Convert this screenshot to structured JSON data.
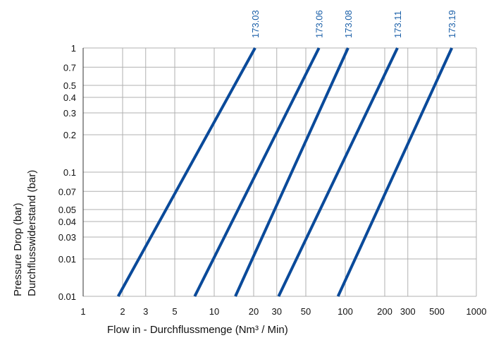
{
  "chart_data": {
    "type": "line",
    "title": "",
    "xlabel": "Flow in - Durchflussmenge (Nm³ / Min)",
    "ylabel_lines": [
      "Pressure Drop (bar)",
      "Durchflusswiderstand (bar)"
    ],
    "x_scale": "log",
    "y_scale": "log",
    "xlim": [
      1,
      1000
    ],
    "ylim": [
      0.01,
      1
    ],
    "grid": true,
    "x_ticks": [
      "1",
      "2",
      "3",
      "5",
      "10",
      "20",
      "30",
      "50",
      "100",
      "200",
      "300",
      "500",
      "1000"
    ],
    "y_tick_labels": [
      "1",
      "0.7",
      "0.5",
      "0.4",
      "0.3",
      "0.2",
      "0.1",
      "0.07",
      "0.05",
      "0.04",
      "0.03",
      "0.01",
      "0.01"
    ],
    "series": [
      {
        "name": "173.03",
        "x": [
          1.85,
          20.5
        ],
        "y": [
          0.01,
          1
        ]
      },
      {
        "name": "173.06",
        "x": [
          7.1,
          63
        ],
        "y": [
          0.01,
          1
        ]
      },
      {
        "name": "173.08",
        "x": [
          14.5,
          105
        ],
        "y": [
          0.01,
          1
        ]
      },
      {
        "name": "173.11",
        "x": [
          31,
          250
        ],
        "y": [
          0.01,
          1
        ]
      },
      {
        "name": "173.19",
        "x": [
          88,
          650
        ],
        "y": [
          0.01,
          1
        ]
      }
    ],
    "colors": {
      "line": "#0a4a9a",
      "label": "#1a5fa8",
      "grid": "#b0b0b0",
      "axis": "#333333"
    }
  }
}
